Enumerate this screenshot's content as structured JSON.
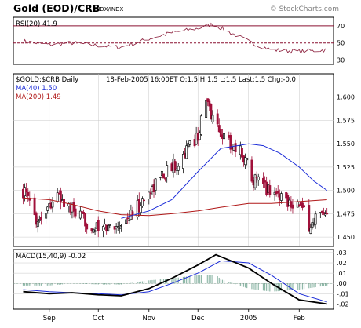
{
  "header": {
    "title": "Gold (EOD)/CRB",
    "subtitle": "INDX/INDX",
    "credit": "© StockCharts.com"
  },
  "colors": {
    "panel_bg": "#ffffff",
    "up_bar": "#101010",
    "down_bar": "#a0103a",
    "ma40": "#1a2bd8",
    "ma200": "#b01818",
    "rsi_line": "#8a1c3a",
    "rsi_band": "#8a1030",
    "macd_line": "#000000",
    "macd_signal": "#1a2bd8",
    "macd_hist": "#8fb8a8",
    "grid": "#c8c8c8"
  },
  "chart_data": [
    {
      "type": "line",
      "label": "RSI(20) 41.9",
      "ylim": [
        25,
        80
      ],
      "yticks": [
        "70",
        "50",
        "30"
      ],
      "levels": [
        70,
        50,
        30
      ],
      "dates": [
        "2004-08-16",
        "2004-09-01",
        "2004-09-15",
        "2004-10-01",
        "2004-10-15",
        "2004-11-01",
        "2004-11-15",
        "2004-12-01",
        "2004-12-10",
        "2005-01-03",
        "2005-01-15",
        "2005-02-01",
        "2005-02-18"
      ],
      "values": [
        52,
        48,
        50,
        47,
        45,
        55,
        62,
        67,
        72,
        50,
        42,
        40,
        41.9
      ]
    },
    {
      "type": "candlestick",
      "ticker_label": "$GOLD:$CRB Daily",
      "ohlc_label": "18-Feb-2005 16:00ET O:1.5 H:1.5 L:1.5 Last:1.5 Chg:-0.0",
      "ma40_label": "MA(40) 1.50",
      "ma200_label": "MA(200) 1.49",
      "ylim": [
        1.44,
        1.625
      ],
      "yticks": [
        "1.600",
        "1.575",
        "1.550",
        "1.525",
        "1.500",
        "1.475",
        "1.450"
      ],
      "xticks": [
        {
          "date": "2004-09-01",
          "label": "Sep"
        },
        {
          "date": "2004-10-01",
          "label": "Oct"
        },
        {
          "date": "2004-11-01",
          "label": "Nov"
        },
        {
          "date": "2004-12-01",
          "label": "Dec"
        },
        {
          "date": "2005-01-01",
          "label": "2005"
        },
        {
          "date": "2005-02-01",
          "label": "Feb"
        }
      ],
      "close_path": {
        "dates": [
          "2004-08-16",
          "2004-08-25",
          "2004-09-05",
          "2004-09-20",
          "2004-10-01",
          "2004-10-10",
          "2004-10-18",
          "2004-10-28",
          "2004-11-08",
          "2004-11-18",
          "2004-11-25",
          "2004-12-01",
          "2004-12-06",
          "2004-12-12",
          "2004-12-18",
          "2004-12-28",
          "2005-01-05",
          "2005-01-15",
          "2005-01-25",
          "2005-02-01",
          "2005-02-08",
          "2005-02-12",
          "2005-02-18"
        ],
        "values": [
          1.5,
          1.468,
          1.495,
          1.47,
          1.457,
          1.462,
          1.468,
          1.488,
          1.515,
          1.53,
          1.545,
          1.56,
          1.595,
          1.57,
          1.555,
          1.54,
          1.51,
          1.5,
          1.49,
          1.485,
          1.46,
          1.475,
          1.468
        ]
      },
      "ma40": {
        "dates": [
          "2004-10-15",
          "2004-11-01",
          "2004-11-15",
          "2004-12-01",
          "2004-12-15",
          "2005-01-01",
          "2005-01-10",
          "2005-01-20",
          "2005-02-01",
          "2005-02-10",
          "2005-02-18"
        ],
        "values": [
          1.47,
          1.478,
          1.49,
          1.52,
          1.545,
          1.55,
          1.548,
          1.54,
          1.525,
          1.51,
          1.5
        ]
      },
      "ma200": {
        "dates": [
          "2004-08-16",
          "2004-09-01",
          "2004-09-15",
          "2004-10-01",
          "2004-10-15",
          "2004-11-01",
          "2004-11-15",
          "2004-12-01",
          "2004-12-15",
          "2005-01-01",
          "2005-01-15",
          "2005-02-01",
          "2005-02-18"
        ],
        "values": [
          1.492,
          1.49,
          1.485,
          1.478,
          1.474,
          1.473,
          1.475,
          1.478,
          1.482,
          1.486,
          1.486,
          1.488,
          1.49
        ]
      }
    },
    {
      "type": "line",
      "label": "MACD(15,40,9) -0.02",
      "ylim": [
        -0.025,
        0.033
      ],
      "yticks": [
        ".03",
        ".02",
        ".01",
        ".00",
        "-.01",
        "-.02"
      ],
      "macd": {
        "dates": [
          "2004-08-16",
          "2004-09-01",
          "2004-09-15",
          "2004-10-01",
          "2004-10-15",
          "2004-11-01",
          "2004-11-15",
          "2004-12-01",
          "2004-12-12",
          "2005-01-01",
          "2005-01-15",
          "2005-02-01",
          "2005-02-18"
        ],
        "values": [
          -0.008,
          -0.01,
          -0.009,
          -0.011,
          -0.012,
          -0.005,
          0.005,
          0.018,
          0.028,
          0.015,
          0.0,
          -0.016,
          -0.02
        ]
      },
      "signal": {
        "dates": [
          "2004-08-16",
          "2004-09-01",
          "2004-09-15",
          "2004-10-01",
          "2004-10-15",
          "2004-11-01",
          "2004-11-15",
          "2004-12-01",
          "2004-12-15",
          "2005-01-01",
          "2005-01-15",
          "2005-02-01",
          "2005-02-18"
        ],
        "values": [
          -0.006,
          -0.008,
          -0.009,
          -0.01,
          -0.011,
          -0.008,
          0.0,
          0.01,
          0.022,
          0.02,
          0.008,
          -0.01,
          -0.018
        ]
      }
    }
  ]
}
